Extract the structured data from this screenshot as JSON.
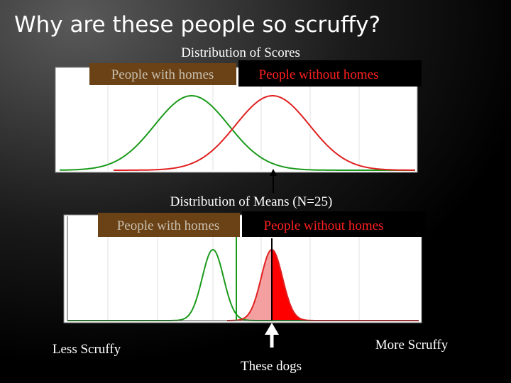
{
  "title": "Why are these people so scruffy?",
  "top_chart": {
    "title": "Distribution of Scores",
    "legend": [
      "People with homes",
      "People without homes"
    ]
  },
  "bottom_chart": {
    "title": "Distribution of Means (N=25)",
    "legend": [
      "People with homes",
      "People without homes"
    ]
  },
  "labels": {
    "left": "Less Scruffy",
    "arrow": "These dogs",
    "right": "More Scruffy"
  }
}
